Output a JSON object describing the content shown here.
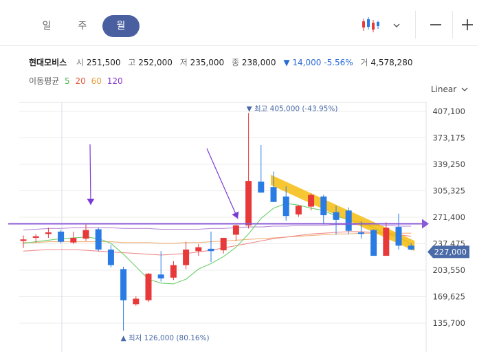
{
  "tabs": [
    {
      "label": "일",
      "active": false
    },
    {
      "label": "주",
      "active": false
    },
    {
      "label": "월",
      "active": true
    }
  ],
  "toolbar": {
    "chart_type_icon": "candlestick-icon",
    "dropdown_icon": "chevron-down-icon",
    "zoom_out_icon": "minus-icon",
    "zoom_in_icon": "plus-icon"
  },
  "stock": {
    "name": "현대모비스",
    "open_label": "시",
    "open": "251,500",
    "high_label": "고",
    "high": "252,000",
    "low_label": "저",
    "low": "235,000",
    "close_label": "종",
    "close": "238,000",
    "change_arrow": "▼",
    "change": "14,000",
    "change_pct": "-5.56%",
    "volume_label": "거",
    "volume": "4,578,280"
  },
  "ma": {
    "label": "이동평균",
    "periods": [
      {
        "value": "5",
        "color": "#4caf50"
      },
      {
        "value": "20",
        "color": "#e8573a"
      },
      {
        "value": "60",
        "color": "#e89a3a"
      },
      {
        "value": "120",
        "color": "#8a3ad6"
      }
    ]
  },
  "scale": {
    "label": "Linear"
  },
  "chart_data": {
    "type": "candlestick",
    "y_ticks": [
      "407,100",
      "373,175",
      "339,250",
      "305,325",
      "271,400",
      "237,475",
      "203,550",
      "169,625",
      "135,700"
    ],
    "ylim": [
      104000,
      414000
    ],
    "current_price_label": "227,000",
    "current_price": 227000,
    "current_price_color": "#4a6aa8",
    "max_note": "▼ 최고 405,000 (-43.95%)",
    "min_note": "▲ 최저 126,000 (80.16%)",
    "up_color": "#e8393a",
    "down_color": "#2a7be4",
    "candles": [
      {
        "o": 241000,
        "h": 248000,
        "l": 232000,
        "c": 243000
      },
      {
        "o": 245000,
        "h": 250000,
        "l": 239000,
        "c": 247000
      },
      {
        "o": 250000,
        "h": 258000,
        "l": 245000,
        "c": 252000
      },
      {
        "o": 253000,
        "h": 255000,
        "l": 238000,
        "c": 240000
      },
      {
        "o": 239000,
        "h": 253000,
        "l": 237000,
        "c": 245000
      },
      {
        "o": 244000,
        "h": 262000,
        "l": 241000,
        "c": 255000
      },
      {
        "o": 256000,
        "h": 258000,
        "l": 228000,
        "c": 230000
      },
      {
        "o": 230000,
        "h": 236000,
        "l": 207000,
        "c": 210000
      },
      {
        "o": 205000,
        "h": 208000,
        "l": 126000,
        "c": 165000
      },
      {
        "o": 160000,
        "h": 170000,
        "l": 158000,
        "c": 167000
      },
      {
        "o": 165000,
        "h": 200000,
        "l": 163000,
        "c": 199000
      },
      {
        "o": 198000,
        "h": 228000,
        "l": 189000,
        "c": 193000
      },
      {
        "o": 194000,
        "h": 215000,
        "l": 191000,
        "c": 210000
      },
      {
        "o": 210000,
        "h": 240000,
        "l": 205000,
        "c": 230000
      },
      {
        "o": 228000,
        "h": 237000,
        "l": 222000,
        "c": 233000
      },
      {
        "o": 231000,
        "h": 253000,
        "l": 214000,
        "c": 228000
      },
      {
        "o": 229000,
        "h": 245000,
        "l": 225000,
        "c": 245000
      },
      {
        "o": 249000,
        "h": 262000,
        "l": 241000,
        "c": 261000
      },
      {
        "o": 261000,
        "h": 405000,
        "l": 257000,
        "c": 318000
      },
      {
        "o": 317000,
        "h": 364000,
        "l": 303000,
        "c": 303000
      },
      {
        "o": 310000,
        "h": 330000,
        "l": 291000,
        "c": 291000
      },
      {
        "o": 298000,
        "h": 311000,
        "l": 267000,
        "c": 273000
      },
      {
        "o": 275000,
        "h": 287000,
        "l": 272000,
        "c": 286000
      },
      {
        "o": 285000,
        "h": 302000,
        "l": 280000,
        "c": 300000
      },
      {
        "o": 298000,
        "h": 300000,
        "l": 262000,
        "c": 274000
      },
      {
        "o": 278000,
        "h": 286000,
        "l": 249000,
        "c": 268000
      },
      {
        "o": 280000,
        "h": 284000,
        "l": 250000,
        "c": 254000
      },
      {
        "o": 252000,
        "h": 266000,
        "l": 244000,
        "c": 250000
      },
      {
        "o": 255000,
        "h": 256000,
        "l": 222000,
        "c": 222000
      },
      {
        "o": 222000,
        "h": 265000,
        "l": 222000,
        "c": 258000
      },
      {
        "o": 259000,
        "h": 276000,
        "l": 230000,
        "c": 235000
      },
      {
        "o": 235000,
        "h": 238000,
        "l": 229000,
        "c": 230000
      }
    ],
    "ma5": [
      238000,
      240000,
      242000,
      244000,
      245000,
      246000,
      244000,
      238000,
      224000,
      208000,
      192000,
      187000,
      186000,
      192000,
      205000,
      212000,
      221000,
      233000,
      250000,
      270000,
      283000,
      289000,
      287000,
      283000,
      280000,
      273000,
      268000,
      265000,
      258000,
      250000,
      246000,
      237000
    ],
    "ma20": [
      228000,
      229000,
      230000,
      230000,
      230000,
      229000,
      228000,
      227000,
      226000,
      225000,
      224000,
      223000,
      224000,
      225000,
      227000,
      229000,
      232000,
      235000,
      238000,
      241000,
      244000,
      246000,
      248000,
      250000,
      251000,
      252000,
      253000,
      253000,
      252000,
      251000,
      249000,
      247000
    ],
    "ma60": [
      239000,
      239000,
      240000,
      240000,
      240000,
      240000,
      240000,
      240000,
      239000,
      239000,
      239000,
      238000,
      238000,
      239000,
      239000,
      240000,
      241000,
      242000,
      243000,
      244000,
      245000,
      246000,
      247000,
      248000,
      249000,
      250000,
      250000,
      251000,
      251000,
      251000,
      251000,
      251000
    ],
    "ma120": [
      255000,
      256000,
      257000,
      257000,
      258000,
      258000,
      258000,
      258000,
      257000,
      257000,
      257000,
      256000,
      256000,
      256000,
      256000,
      257000,
      257000,
      258000,
      259000,
      259000,
      260000,
      260000,
      261000,
      261000,
      261000,
      262000,
      262000,
      262000,
      261000,
      261000,
      260000,
      260000
    ],
    "horizontal_line": {
      "y": 263000,
      "color": "#8a5ad6"
    },
    "annotation_arrows_color": "#7a3ad6",
    "trend_band_color": "#f5b800"
  }
}
